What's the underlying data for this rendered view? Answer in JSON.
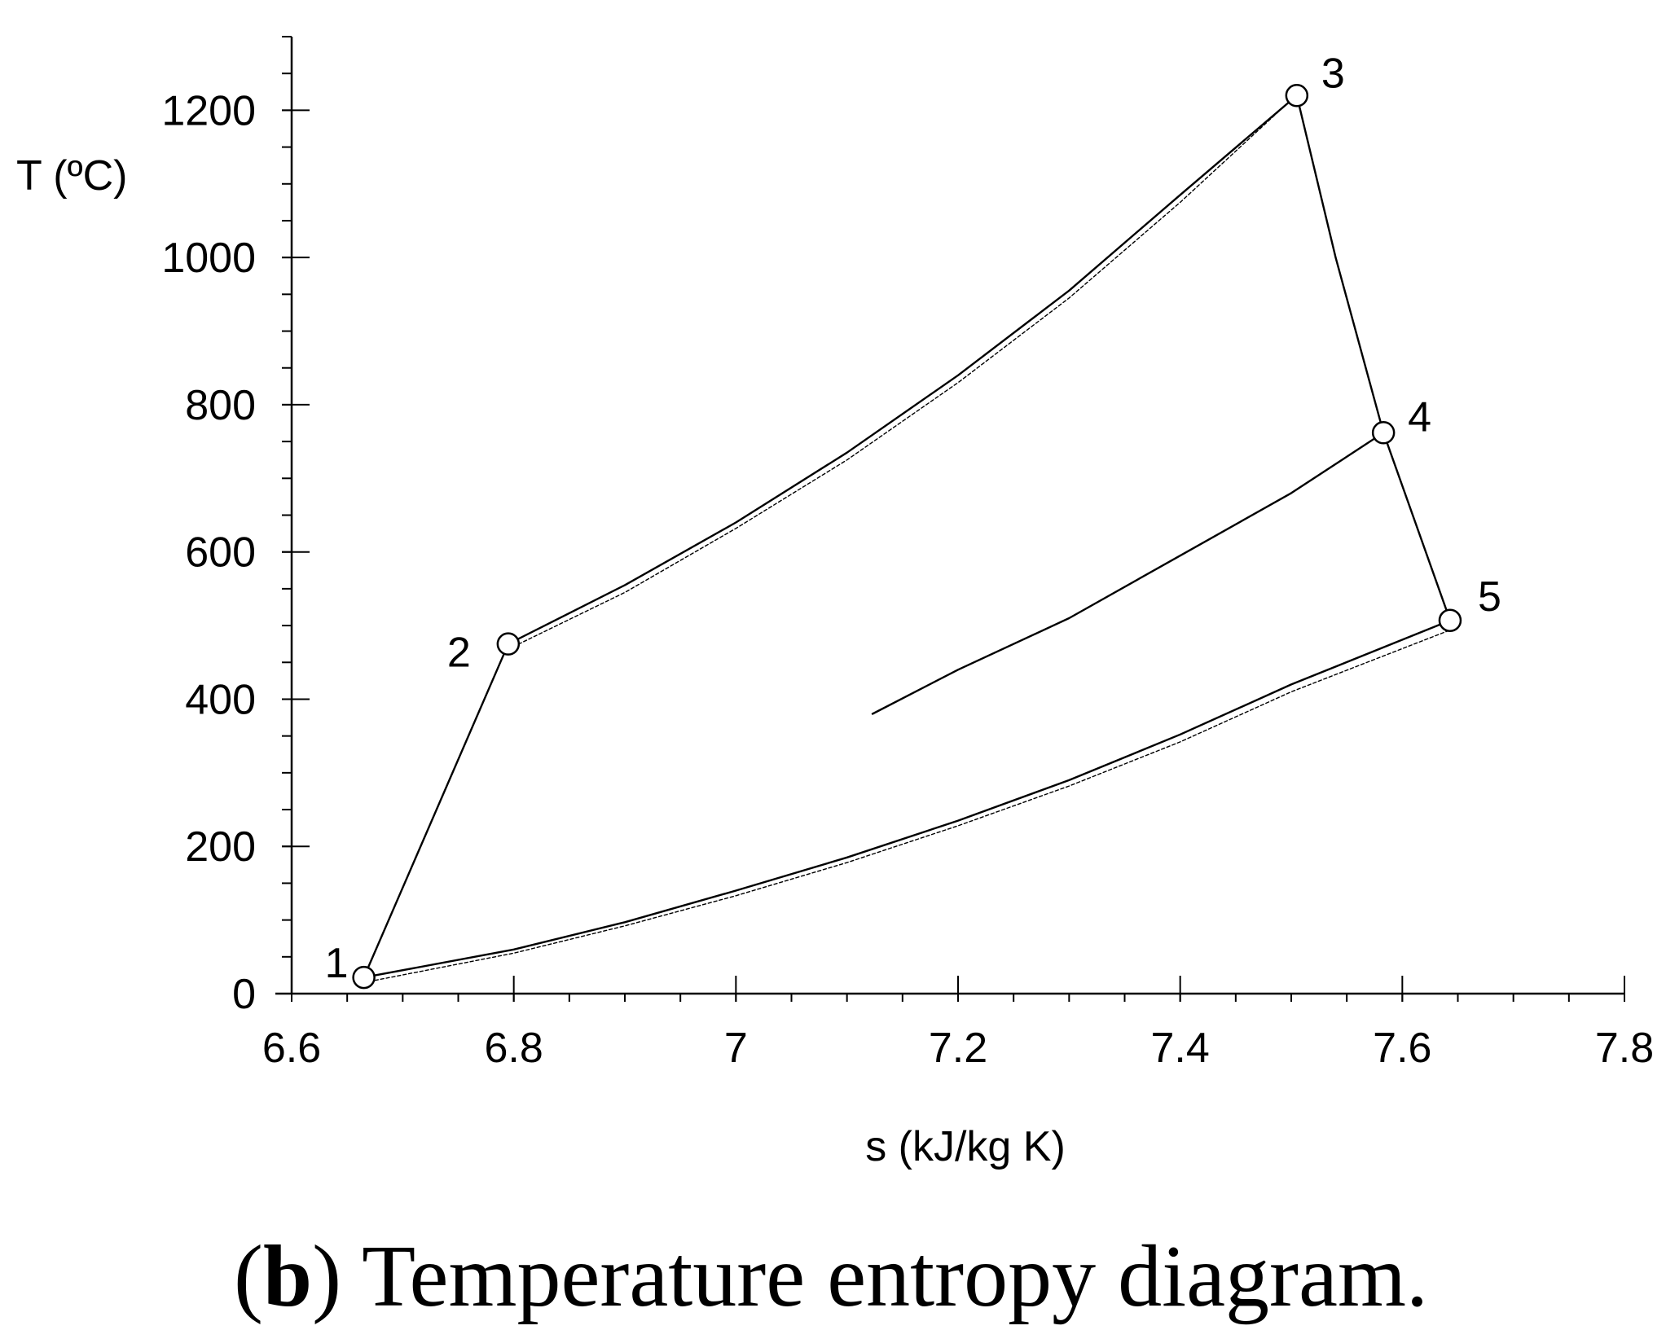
{
  "chart_data": {
    "type": "line",
    "title": "",
    "xlabel": "s (kJ/kg K)",
    "ylabel": "T (ºC)",
    "xlim": [
      6.6,
      7.8
    ],
    "ylim": [
      0,
      1300
    ],
    "x_ticks": [
      "6.6",
      "6.8",
      "7",
      "7.2",
      "7.4",
      "7.6",
      "7.8"
    ],
    "y_ticks": [
      "0",
      "200",
      "400",
      "600",
      "800",
      "1000",
      "1200"
    ],
    "x_tick_values": [
      6.6,
      6.8,
      7.0,
      7.2,
      7.4,
      7.6,
      7.8
    ],
    "y_tick_values": [
      0,
      200,
      400,
      600,
      800,
      1000,
      1200
    ],
    "x_minor_step": 0.05,
    "y_minor_step": 50,
    "grid": false,
    "states": [
      {
        "label": "1",
        "s": 6.665,
        "T": 22
      },
      {
        "label": "2",
        "s": 6.795,
        "T": 475
      },
      {
        "label": "3",
        "s": 7.505,
        "T": 1220
      },
      {
        "label": "4",
        "s": 7.583,
        "T": 762
      },
      {
        "label": "5",
        "s": 7.643,
        "T": 507
      }
    ],
    "series": [
      {
        "style": "solid",
        "x": [
          6.665,
          6.795
        ],
        "y": [
          22,
          475
        ]
      },
      {
        "style": "solid",
        "x": [
          6.795,
          6.9,
          7.0,
          7.1,
          7.2,
          7.3,
          7.4,
          7.505
        ],
        "y": [
          475,
          555,
          640,
          735,
          840,
          955,
          1085,
          1220
        ]
      },
      {
        "style": "dotted",
        "x": [
          6.795,
          6.9,
          7.0,
          7.1,
          7.2,
          7.3,
          7.4,
          7.51
        ],
        "y": [
          468,
          545,
          632,
          725,
          830,
          945,
          1075,
          1228
        ]
      },
      {
        "style": "solid",
        "x": [
          7.505,
          7.54,
          7.583
        ],
        "y": [
          1220,
          1000,
          762
        ]
      },
      {
        "style": "solid",
        "x": [
          7.583,
          7.643
        ],
        "y": [
          762,
          507
        ]
      },
      {
        "style": "solid",
        "x": [
          7.123,
          7.2,
          7.3,
          7.4,
          7.5,
          7.583
        ],
        "y": [
          380,
          440,
          510,
          595,
          680,
          762
        ]
      },
      {
        "style": "solid",
        "x": [
          6.665,
          6.8,
          6.9,
          7.0,
          7.1,
          7.2,
          7.3,
          7.4,
          7.5,
          7.643
        ],
        "y": [
          22,
          60,
          97,
          140,
          185,
          235,
          290,
          352,
          420,
          507
        ]
      },
      {
        "style": "dotted",
        "x": [
          6.665,
          6.8,
          6.9,
          7.0,
          7.1,
          7.2,
          7.3,
          7.4,
          7.5,
          7.65
        ],
        "y": [
          15,
          55,
          92,
          133,
          178,
          228,
          282,
          342,
          410,
          498
        ]
      }
    ]
  },
  "caption": {
    "prefix": "(",
    "bold": "b",
    "suffix": ") Temperature entropy diagram."
  }
}
